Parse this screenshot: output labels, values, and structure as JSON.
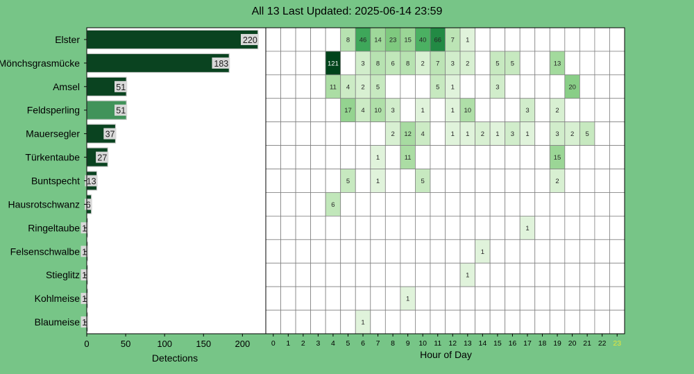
{
  "title": "All 13 Last Updated: 2025-06-14 23:59",
  "colors": {
    "background": "#77c587",
    "bar_dark": "#0a4320",
    "bar_highlight": "#41935a",
    "label_box": "#d9d9d9",
    "highlight_hour_tick": "#e7e73a"
  },
  "chart_data": [
    {
      "type": "bar",
      "orientation": "horizontal",
      "xlabel": "Detections",
      "ylabel": "",
      "xlim": [
        0,
        230
      ],
      "xticks": [
        0,
        50,
        100,
        150,
        200
      ],
      "categories": [
        "Elster",
        "Mönchsgrasmücke",
        "Amsel",
        "Feldsperling",
        "Mauersegler",
        "Türkentaube",
        "Buntspecht",
        "Hausrotschwanz",
        "Ringeltaube",
        "Felsenschwalbe",
        "Stieglitz",
        "Kohlmeise",
        "Blaumeise"
      ],
      "values": [
        220,
        183,
        51,
        51,
        37,
        27,
        13,
        6,
        1,
        1,
        1,
        1,
        1
      ],
      "highlighted_category": "Feldsperling"
    },
    {
      "type": "heatmap",
      "xlabel": "Hour of Day",
      "x": [
        "0",
        "1",
        "2",
        "3",
        "4",
        "5",
        "6",
        "7",
        "8",
        "9",
        "10",
        "11",
        "12",
        "13",
        "14",
        "15",
        "16",
        "17",
        "18",
        "19",
        "20",
        "21",
        "22",
        "23"
      ],
      "highlighted_x": "23",
      "y": [
        "Elster",
        "Mönchsgrasmücke",
        "Amsel",
        "Feldsperling",
        "Mauersegler",
        "Türkentaube",
        "Buntspecht",
        "Hausrotschwanz",
        "Ringeltaube",
        "Felsenschwalbe",
        "Stieglitz",
        "Kohlmeise",
        "Blaumeise"
      ],
      "values": [
        [
          0,
          0,
          0,
          0,
          0,
          8,
          46,
          14,
          23,
          15,
          40,
          66,
          7,
          1,
          0,
          0,
          0,
          0,
          0,
          0,
          0,
          0,
          0,
          0
        ],
        [
          0,
          0,
          0,
          0,
          121,
          0,
          3,
          8,
          6,
          8,
          2,
          7,
          3,
          2,
          0,
          5,
          5,
          0,
          0,
          13,
          0,
          0,
          0,
          0
        ],
        [
          0,
          0,
          0,
          0,
          11,
          4,
          2,
          5,
          0,
          0,
          0,
          5,
          1,
          0,
          0,
          3,
          0,
          0,
          0,
          0,
          20,
          0,
          0,
          0
        ],
        [
          0,
          0,
          0,
          0,
          0,
          17,
          4,
          10,
          3,
          0,
          1,
          0,
          1,
          10,
          0,
          0,
          0,
          3,
          0,
          2,
          0,
          0,
          0,
          0
        ],
        [
          0,
          0,
          0,
          0,
          0,
          0,
          0,
          0,
          2,
          12,
          4,
          0,
          1,
          1,
          2,
          1,
          3,
          1,
          0,
          3,
          2,
          5,
          0,
          0
        ],
        [
          0,
          0,
          0,
          0,
          0,
          0,
          0,
          1,
          0,
          11,
          0,
          0,
          0,
          0,
          0,
          0,
          0,
          0,
          0,
          15,
          0,
          0,
          0,
          0
        ],
        [
          0,
          0,
          0,
          0,
          0,
          5,
          0,
          1,
          0,
          0,
          5,
          0,
          0,
          0,
          0,
          0,
          0,
          0,
          0,
          2,
          0,
          0,
          0,
          0
        ],
        [
          0,
          0,
          0,
          0,
          6,
          0,
          0,
          0,
          0,
          0,
          0,
          0,
          0,
          0,
          0,
          0,
          0,
          0,
          0,
          0,
          0,
          0,
          0,
          0
        ],
        [
          0,
          0,
          0,
          0,
          0,
          0,
          0,
          0,
          0,
          0,
          0,
          0,
          0,
          0,
          0,
          0,
          0,
          1,
          0,
          0,
          0,
          0,
          0,
          0
        ],
        [
          0,
          0,
          0,
          0,
          0,
          0,
          0,
          0,
          0,
          0,
          0,
          0,
          0,
          0,
          1,
          0,
          0,
          0,
          0,
          0,
          0,
          0,
          0,
          0
        ],
        [
          0,
          0,
          0,
          0,
          0,
          0,
          0,
          0,
          0,
          0,
          0,
          0,
          0,
          1,
          0,
          0,
          0,
          0,
          0,
          0,
          0,
          0,
          0,
          0
        ],
        [
          0,
          0,
          0,
          0,
          0,
          0,
          0,
          0,
          0,
          1,
          0,
          0,
          0,
          0,
          0,
          0,
          0,
          0,
          0,
          0,
          0,
          0,
          0,
          0
        ],
        [
          0,
          0,
          0,
          0,
          0,
          0,
          1,
          0,
          0,
          0,
          0,
          0,
          0,
          0,
          0,
          0,
          0,
          0,
          0,
          0,
          0,
          0,
          0,
          0
        ]
      ],
      "colormap": "Greens"
    }
  ]
}
